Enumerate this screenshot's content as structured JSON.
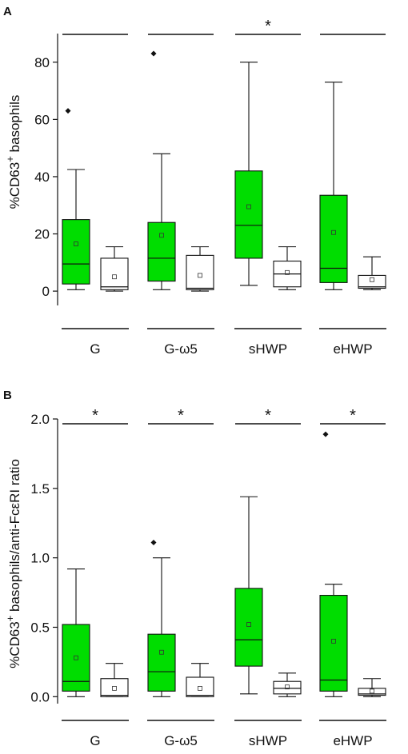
{
  "chart_data": [
    {
      "type": "box",
      "panel": "A",
      "ylabel_pre": "%CD63",
      "ylabel_sup": "+",
      "ylabel_post": " basophils",
      "ylim": [
        -5,
        90
      ],
      "yticks": [
        0,
        20,
        40,
        60,
        80
      ],
      "ytick_labels": [
        "0",
        "20",
        "40",
        "60",
        "80"
      ],
      "categories": [
        "G",
        "G-ω5",
        "sHWP",
        "eHWP"
      ],
      "significance": [
        "",
        "",
        "*",
        ""
      ],
      "groups": [
        {
          "category": "G",
          "boxes": [
            {
              "fill": "#00dd00",
              "whisker_low": 0.5,
              "q1": 2.5,
              "median": 9.5,
              "q3": 25,
              "whisker_high": 42.5,
              "mean": 16.5,
              "outliers": [
                63
              ]
            },
            {
              "fill": "#ffffff",
              "whisker_low": 0,
              "q1": 0.5,
              "median": 1.5,
              "q3": 11.5,
              "whisker_high": 15.5,
              "mean": 5,
              "outliers": []
            }
          ]
        },
        {
          "category": "G-ω5",
          "boxes": [
            {
              "fill": "#00dd00",
              "whisker_low": 0.5,
              "q1": 3.5,
              "median": 11.5,
              "q3": 24,
              "whisker_high": 48,
              "mean": 19.5,
              "outliers": [
                83
              ]
            },
            {
              "fill": "#ffffff",
              "whisker_low": 0,
              "q1": 0.5,
              "median": 1,
              "q3": 12.5,
              "whisker_high": 15.5,
              "mean": 5.5,
              "outliers": []
            }
          ]
        },
        {
          "category": "sHWP",
          "boxes": [
            {
              "fill": "#00dd00",
              "whisker_low": 2,
              "q1": 11.5,
              "median": 23,
              "q3": 42,
              "whisker_high": 80,
              "mean": 29.5,
              "outliers": []
            },
            {
              "fill": "#ffffff",
              "whisker_low": 0.5,
              "q1": 1.5,
              "median": 6,
              "q3": 10.5,
              "whisker_high": 15.5,
              "mean": 6.5,
              "outliers": []
            }
          ]
        },
        {
          "category": "eHWP",
          "boxes": [
            {
              "fill": "#00dd00",
              "whisker_low": 0.5,
              "q1": 3,
              "median": 8,
              "q3": 33.5,
              "whisker_high": 73,
              "mean": 20.5,
              "outliers": []
            },
            {
              "fill": "#ffffff",
              "whisker_low": 0.5,
              "q1": 1,
              "median": 1.5,
              "q3": 5.5,
              "whisker_high": 12,
              "mean": 4,
              "outliers": []
            }
          ]
        }
      ]
    },
    {
      "type": "box",
      "panel": "B",
      "ylabel_pre": "%CD63",
      "ylabel_sup": "+",
      "ylabel_post": " basophils/anti-FcεRI ratio",
      "ylim": [
        -0.05,
        2.0
      ],
      "yticks": [
        0.0,
        0.5,
        1.0,
        1.5,
        2.0
      ],
      "ytick_labels": [
        "0.0",
        "0.5",
        "1.0",
        "1.5",
        "2.0"
      ],
      "categories": [
        "G",
        "G-ω5",
        "sHWP",
        "eHWP"
      ],
      "significance": [
        "*",
        "*",
        "*",
        "*"
      ],
      "groups": [
        {
          "category": "G",
          "boxes": [
            {
              "fill": "#00dd00",
              "whisker_low": 0,
              "q1": 0.04,
              "median": 0.11,
              "q3": 0.52,
              "whisker_high": 0.92,
              "mean": 0.28,
              "outliers": []
            },
            {
              "fill": "#ffffff",
              "whisker_low": 0,
              "q1": 0,
              "median": 0.01,
              "q3": 0.13,
              "whisker_high": 0.24,
              "mean": 0.06,
              "outliers": []
            }
          ]
        },
        {
          "category": "G-ω5",
          "boxes": [
            {
              "fill": "#00dd00",
              "whisker_low": 0,
              "q1": 0.04,
              "median": 0.18,
              "q3": 0.45,
              "whisker_high": 1.0,
              "mean": 0.32,
              "outliers": [
                1.11
              ]
            },
            {
              "fill": "#ffffff",
              "whisker_low": 0,
              "q1": 0,
              "median": 0.01,
              "q3": 0.14,
              "whisker_high": 0.24,
              "mean": 0.06,
              "outliers": []
            }
          ]
        },
        {
          "category": "sHWP",
          "boxes": [
            {
              "fill": "#00dd00",
              "whisker_low": 0.02,
              "q1": 0.22,
              "median": 0.41,
              "q3": 0.78,
              "whisker_high": 1.44,
              "mean": 0.52,
              "outliers": []
            },
            {
              "fill": "#ffffff",
              "whisker_low": 0,
              "q1": 0.02,
              "median": 0.06,
              "q3": 0.11,
              "whisker_high": 0.17,
              "mean": 0.07,
              "outliers": []
            }
          ]
        },
        {
          "category": "eHWP",
          "boxes": [
            {
              "fill": "#00dd00",
              "whisker_low": 0,
              "q1": 0.04,
              "median": 0.12,
              "q3": 0.73,
              "whisker_high": 0.81,
              "mean": 0.4,
              "outliers": [
                1.89
              ]
            },
            {
              "fill": "#ffffff",
              "whisker_low": 0,
              "q1": 0.01,
              "median": 0.02,
              "q3": 0.06,
              "whisker_high": 0.13,
              "mean": 0.04,
              "outliers": []
            }
          ]
        }
      ]
    }
  ]
}
